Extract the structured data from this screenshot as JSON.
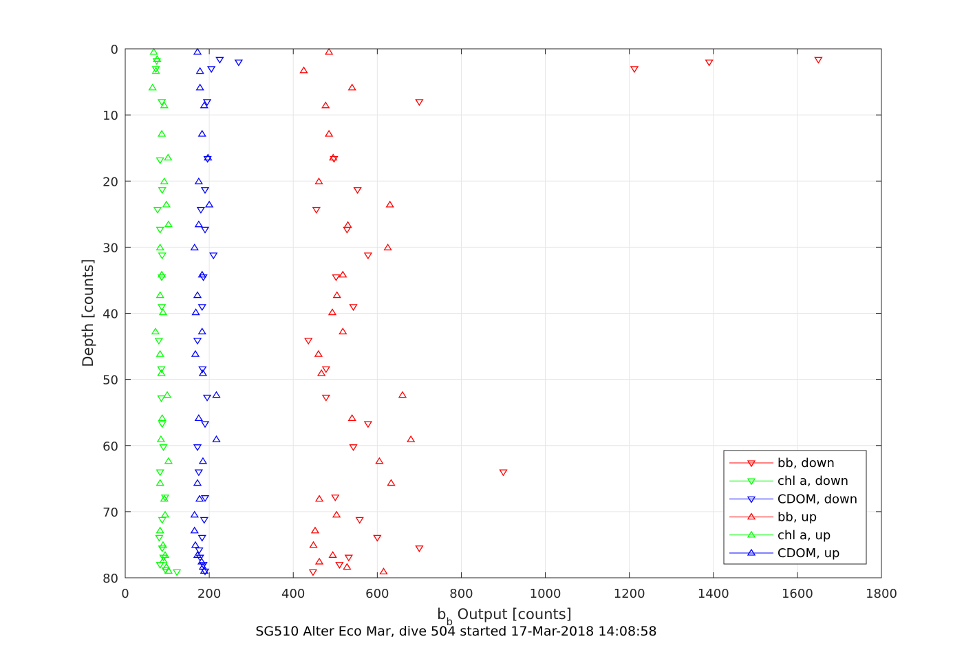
{
  "chart_data": {
    "type": "scatter",
    "xlabel_main": "b",
    "xlabel_sub": "b",
    "xlabel_rest": " Output [counts]",
    "ylabel": "Depth [counts]",
    "caption": "SG510 Alter Eco Mar, dive 504 started 17-Mar-2018 14:08:58",
    "xlim": [
      0,
      1800
    ],
    "ylim": [
      0,
      80
    ],
    "y_reversed": true,
    "grid": true,
    "legend_position": "bottom-right",
    "xticks": [
      0,
      200,
      400,
      600,
      800,
      1000,
      1200,
      1400,
      1600,
      1800
    ],
    "yticks": [
      0,
      10,
      20,
      30,
      40,
      50,
      60,
      70,
      80
    ],
    "colors": {
      "red": "#ff0000",
      "green": "#00ff00",
      "blue": "#0000ff",
      "grid": "#e6e6e6",
      "axis": "#262626"
    },
    "series": [
      {
        "name": "bb, down",
        "color": "#ff0000",
        "marker": "down",
        "points": [
          [
            1650,
            1.6
          ],
          [
            1390,
            2
          ],
          [
            1212,
            3
          ],
          [
            700,
            8
          ],
          [
            497,
            16.6
          ],
          [
            553,
            21.3
          ],
          [
            455,
            24.3
          ],
          [
            528,
            27.3
          ],
          [
            578,
            31.2
          ],
          [
            502,
            34.5
          ],
          [
            543,
            39
          ],
          [
            436,
            44.1
          ],
          [
            478,
            48.4
          ],
          [
            478,
            52.7
          ],
          [
            578,
            56.7
          ],
          [
            543,
            60.2
          ],
          [
            900,
            64
          ],
          [
            500,
            67.8
          ],
          [
            558,
            71.2
          ],
          [
            600,
            73.9
          ],
          [
            700,
            75.5
          ],
          [
            532,
            76.9
          ],
          [
            510,
            78
          ],
          [
            447,
            79.1
          ]
        ]
      },
      {
        "name": "chl a, down",
        "color": "#00ff00",
        "marker": "down",
        "points": [
          [
            75,
            1.8
          ],
          [
            73,
            3
          ],
          [
            87,
            8
          ],
          [
            83,
            16.8
          ],
          [
            88,
            21.3
          ],
          [
            77,
            24.3
          ],
          [
            83,
            27.3
          ],
          [
            88,
            31.2
          ],
          [
            87,
            34.5
          ],
          [
            87,
            39
          ],
          [
            80,
            44.1
          ],
          [
            86,
            48.4
          ],
          [
            86,
            52.8
          ],
          [
            88,
            56.7
          ],
          [
            91,
            60.2
          ],
          [
            83,
            64
          ],
          [
            95,
            67.8
          ],
          [
            88,
            71.2
          ],
          [
            81,
            73.9
          ],
          [
            88,
            75.5
          ],
          [
            91,
            76.9
          ],
          [
            83,
            78
          ],
          [
            96,
            78.8
          ],
          [
            123,
            79.1
          ]
        ]
      },
      {
        "name": "CDOM, down",
        "color": "#0000ff",
        "marker": "down",
        "points": [
          [
            270,
            2
          ],
          [
            225,
            1.6
          ],
          [
            205,
            3
          ],
          [
            195,
            8
          ],
          [
            196,
            16.6
          ],
          [
            190,
            21.3
          ],
          [
            180,
            24.3
          ],
          [
            190,
            27.3
          ],
          [
            210,
            31.2
          ],
          [
            186,
            34.5
          ],
          [
            183,
            39
          ],
          [
            172,
            44.1
          ],
          [
            184,
            48.4
          ],
          [
            195,
            52.7
          ],
          [
            190,
            56.7
          ],
          [
            172,
            60.2
          ],
          [
            175,
            64
          ],
          [
            190,
            67.9
          ],
          [
            188,
            71.2
          ],
          [
            183,
            73.9
          ],
          [
            176,
            75.8
          ],
          [
            178,
            76.9
          ],
          [
            186,
            78
          ],
          [
            190,
            79
          ]
        ]
      },
      {
        "name": "bb, up",
        "color": "#ff0000",
        "marker": "up",
        "points": [
          [
            485,
            0.5
          ],
          [
            425,
            3.3
          ],
          [
            540,
            5.9
          ],
          [
            477,
            8.6
          ],
          [
            485,
            12.9
          ],
          [
            495,
            16.5
          ],
          [
            461,
            20.1
          ],
          [
            630,
            23.6
          ],
          [
            530,
            26.7
          ],
          [
            625,
            30.1
          ],
          [
            518,
            34.2
          ],
          [
            504,
            37.3
          ],
          [
            493,
            39.9
          ],
          [
            518,
            42.8
          ],
          [
            460,
            46.2
          ],
          [
            467,
            49.1
          ],
          [
            660,
            52.4
          ],
          [
            540,
            55.9
          ],
          [
            680,
            59.1
          ],
          [
            605,
            62.4
          ],
          [
            633,
            65.7
          ],
          [
            462,
            68.1
          ],
          [
            503,
            70.5
          ],
          [
            452,
            72.9
          ],
          [
            448,
            75.1
          ],
          [
            494,
            76.6
          ],
          [
            462,
            77.6
          ],
          [
            528,
            78.4
          ],
          [
            615,
            79.1
          ]
        ]
      },
      {
        "name": "chl a, up",
        "color": "#00ff00",
        "marker": "up",
        "points": [
          [
            68,
            0.5
          ],
          [
            76,
            1.6
          ],
          [
            73,
            3.4
          ],
          [
            65,
            5.9
          ],
          [
            93,
            8.6
          ],
          [
            87,
            12.9
          ],
          [
            102,
            16.5
          ],
          [
            93,
            20.1
          ],
          [
            98,
            23.6
          ],
          [
            103,
            26.6
          ],
          [
            83,
            30.1
          ],
          [
            87,
            34.2
          ],
          [
            83,
            37.3
          ],
          [
            90,
            39.9
          ],
          [
            72,
            42.8
          ],
          [
            83,
            46.2
          ],
          [
            86,
            49.1
          ],
          [
            100,
            52.4
          ],
          [
            88,
            55.9
          ],
          [
            85,
            59.1
          ],
          [
            103,
            62.4
          ],
          [
            83,
            65.7
          ],
          [
            93,
            68.1
          ],
          [
            95,
            70.5
          ],
          [
            83,
            72.9
          ],
          [
            90,
            75.1
          ],
          [
            95,
            76.6
          ],
          [
            91,
            77.4
          ],
          [
            98,
            78.4
          ],
          [
            103,
            79
          ]
        ]
      },
      {
        "name": "CDOM, up",
        "color": "#0000ff",
        "marker": "up",
        "points": [
          [
            172,
            0.5
          ],
          [
            178,
            3.4
          ],
          [
            178,
            5.9
          ],
          [
            188,
            8.6
          ],
          [
            183,
            12.9
          ],
          [
            197,
            16.5
          ],
          [
            175,
            20.1
          ],
          [
            200,
            23.6
          ],
          [
            175,
            26.6
          ],
          [
            165,
            30.1
          ],
          [
            183,
            34.2
          ],
          [
            172,
            37.3
          ],
          [
            168,
            39.9
          ],
          [
            183,
            42.8
          ],
          [
            167,
            46.2
          ],
          [
            185,
            49.1
          ],
          [
            217,
            52.4
          ],
          [
            175,
            55.9
          ],
          [
            217,
            59.1
          ],
          [
            185,
            62.4
          ],
          [
            172,
            65.7
          ],
          [
            177,
            68.1
          ],
          [
            165,
            70.5
          ],
          [
            165,
            72.9
          ],
          [
            167,
            75.1
          ],
          [
            172,
            76.6
          ],
          [
            182,
            77.6
          ],
          [
            185,
            78.4
          ],
          [
            188,
            79
          ]
        ]
      }
    ]
  }
}
